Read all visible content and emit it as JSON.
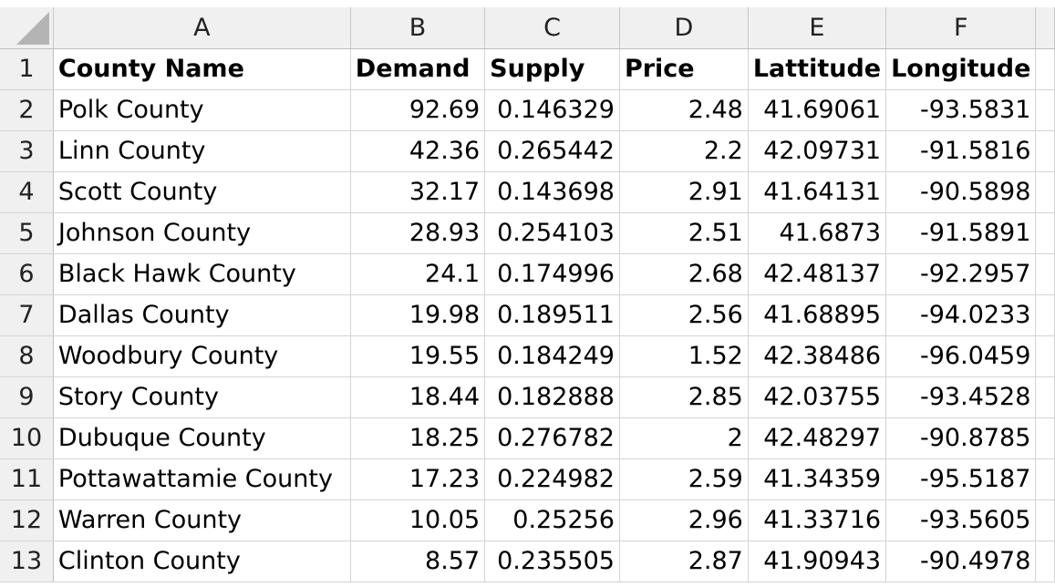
{
  "columns": [
    "A",
    "B",
    "C",
    "D",
    "E",
    "F"
  ],
  "row_numbers": [
    "1",
    "2",
    "3",
    "4",
    "5",
    "6",
    "7",
    "8",
    "9",
    "10",
    "11",
    "12",
    "13"
  ],
  "headers": [
    "County Name",
    "Demand",
    "Supply",
    "Price",
    "Lattitude",
    "Longitude"
  ],
  "rows": [
    [
      "Polk County",
      "92.69",
      "0.146329",
      "2.48",
      "41.69061",
      "-93.5831"
    ],
    [
      "Linn County",
      "42.36",
      "0.265442",
      "2.2",
      "42.09731",
      "-91.5816"
    ],
    [
      "Scott County",
      "32.17",
      "0.143698",
      "2.91",
      "41.64131",
      "-90.5898"
    ],
    [
      "Johnson County",
      "28.93",
      "0.254103",
      "2.51",
      "41.6873",
      "-91.5891"
    ],
    [
      "Black Hawk County",
      "24.1",
      "0.174996",
      "2.68",
      "42.48137",
      "-92.2957"
    ],
    [
      "Dallas County",
      "19.98",
      "0.189511",
      "2.56",
      "41.68895",
      "-94.0233"
    ],
    [
      "Woodbury County",
      "19.55",
      "0.184249",
      "1.52",
      "42.38486",
      "-96.0459"
    ],
    [
      "Story County",
      "18.44",
      "0.182888",
      "2.85",
      "42.03755",
      "-93.4528"
    ],
    [
      "Dubuque County",
      "18.25",
      "0.276782",
      "2",
      "42.48297",
      "-90.8785"
    ],
    [
      "Pottawattamie County",
      "17.23",
      "0.224982",
      "2.59",
      "41.34359",
      "-95.5187"
    ],
    [
      "Warren County",
      "10.05",
      "0.25256",
      "2.96",
      "41.33716",
      "-93.5605"
    ],
    [
      "Clinton County",
      "8.57",
      "0.235505",
      "2.87",
      "41.90943",
      "-90.4978"
    ]
  ]
}
